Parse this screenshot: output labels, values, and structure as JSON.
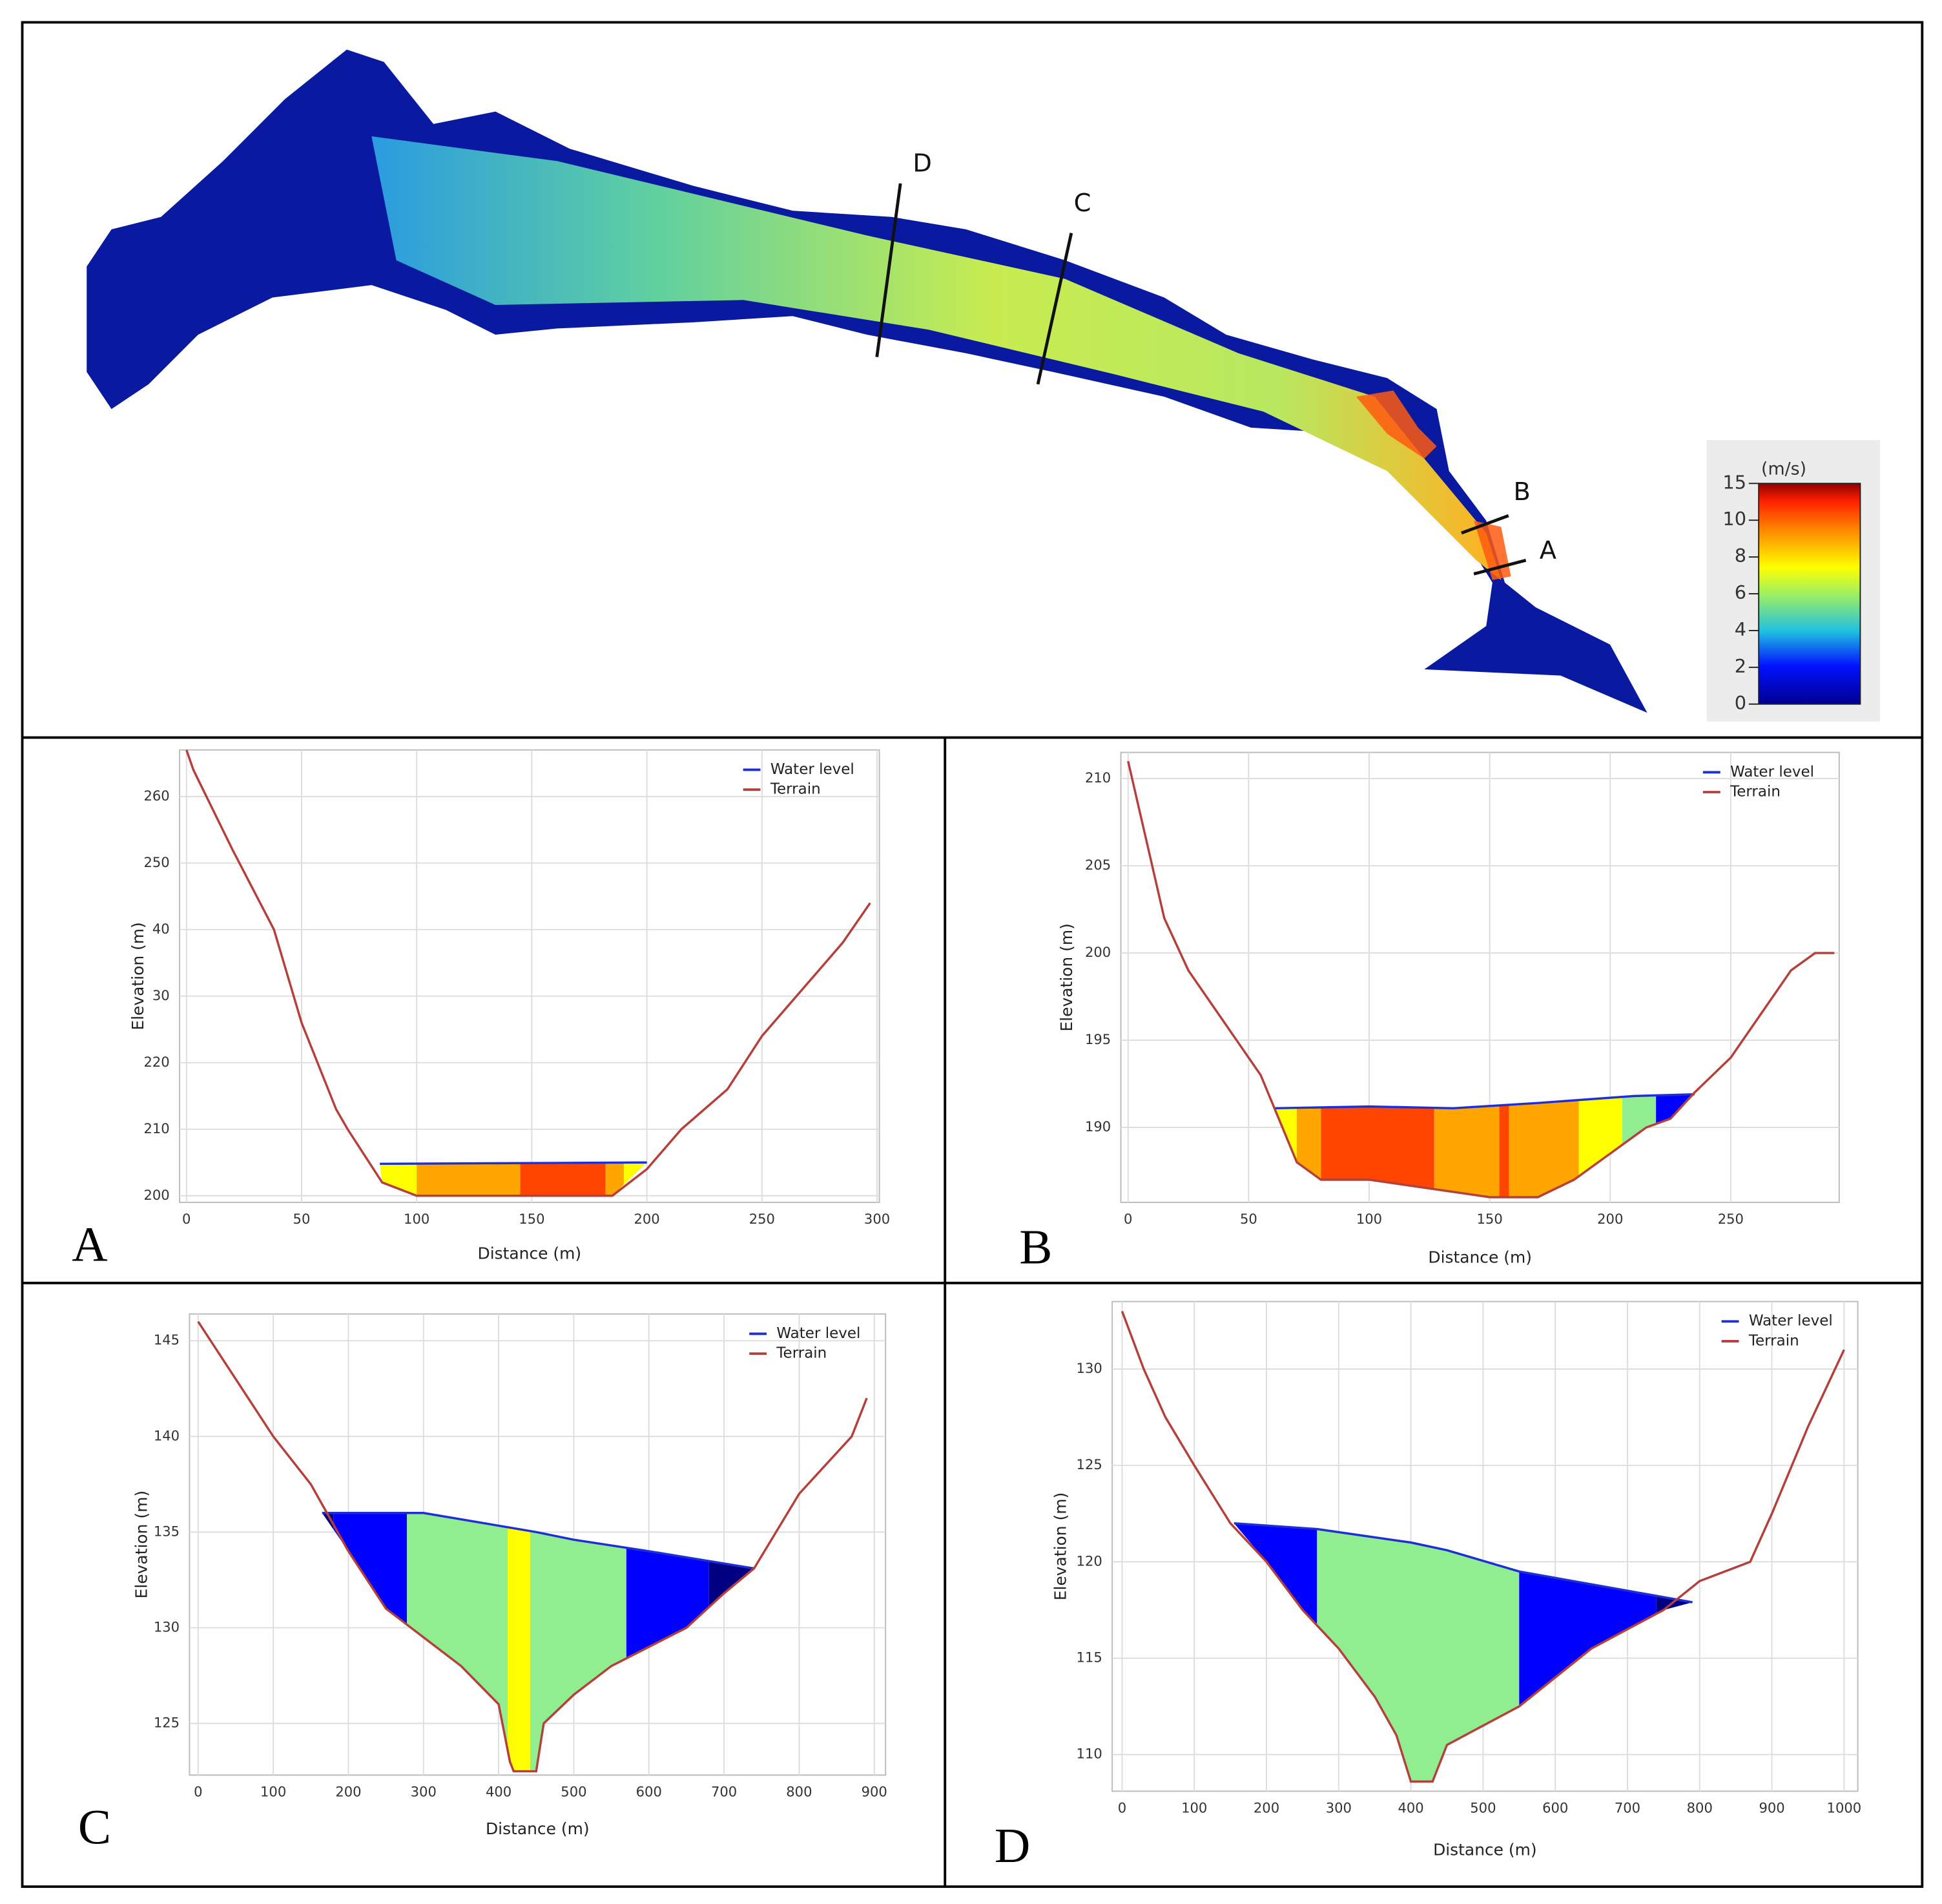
{
  "map": {
    "sections": [
      {
        "label": "D"
      },
      {
        "label": "C"
      },
      {
        "label": "B"
      },
      {
        "label": "A"
      }
    ],
    "legend": {
      "unit": "(m/s)",
      "ticks": [
        15,
        10,
        8,
        6,
        4,
        2,
        0
      ]
    }
  },
  "chart_data": [
    {
      "type": "cross-section",
      "panel": "A",
      "x_label": "Distance (m)",
      "y_label": "Elevation (m)",
      "legend": "top-right",
      "grid": true,
      "xlim": [
        -3,
        301
      ],
      "ylim": [
        199,
        267
      ],
      "xticks": [
        0,
        50,
        100,
        150,
        200,
        250,
        300
      ],
      "yticks": [
        200,
        210,
        220,
        {
          "value": 230,
          "label": "30"
        },
        {
          "value": 240,
          "label": "40"
        },
        250,
        260
      ],
      "series": [
        {
          "name": "Water level",
          "color": "#1f2fd6",
          "x": [
            84,
            200
          ],
          "values": [
            204.8,
            205
          ]
        },
        {
          "name": "Terrain",
          "color": "#b5403b",
          "x": [
            0,
            3,
            20,
            38,
            50,
            65,
            70,
            85,
            100,
            185,
            200,
            215,
            235,
            250,
            270,
            285,
            297
          ],
          "values": [
            267,
            264,
            252,
            240,
            226,
            213,
            210,
            202,
            200,
            200,
            204,
            210,
            216,
            224,
            232,
            238,
            244
          ]
        }
      ],
      "bands": [
        {
          "x": [
            84,
            100
          ],
          "color": "#ffff00"
        },
        {
          "x": [
            100,
            145
          ],
          "color": "#ffa500"
        },
        {
          "x": [
            145,
            182
          ],
          "color": "#ff4500"
        },
        {
          "x": [
            182,
            190
          ],
          "color": "#ffa500"
        },
        {
          "x": [
            190,
            200
          ],
          "color": "#ffff00"
        }
      ]
    },
    {
      "type": "cross-section",
      "panel": "B",
      "x_label": "Distance (m)",
      "y_label": "Elevation (m)",
      "legend": "top-right",
      "grid": true,
      "xlim": [
        -3,
        295
      ],
      "ylim": [
        185.7,
        211.5
      ],
      "xticks": [
        0,
        50,
        100,
        150,
        200,
        250
      ],
      "yticks": [
        190,
        195,
        200,
        205,
        210
      ],
      "series": [
        {
          "name": "Water level",
          "color": "#1f2fd6",
          "x": [
            61,
            100,
            135,
            170,
            210,
            235
          ],
          "values": [
            191.1,
            191.2,
            191.1,
            191.4,
            191.8,
            191.9
          ]
        },
        {
          "name": "Terrain",
          "color": "#b5403b",
          "x": [
            0,
            5,
            15,
            25,
            40,
            55,
            70,
            80,
            100,
            150,
            170,
            185,
            200,
            215,
            225,
            235,
            250,
            265,
            275,
            285,
            293
          ],
          "values": [
            211,
            208,
            202,
            199,
            196,
            193,
            188,
            187,
            187,
            186,
            186,
            187,
            188.5,
            190,
            190.5,
            192,
            194,
            197,
            199,
            200,
            200
          ]
        }
      ],
      "bands": [
        {
          "x": [
            61,
            70
          ],
          "color": "#ffff00"
        },
        {
          "x": [
            70,
            80
          ],
          "color": "#ffa500"
        },
        {
          "x": [
            80,
            127
          ],
          "color": "#ff4500"
        },
        {
          "x": [
            127,
            154
          ],
          "color": "#ffa500"
        },
        {
          "x": [
            154,
            158
          ],
          "color": "#ff4500"
        },
        {
          "x": [
            158,
            187
          ],
          "color": "#ffa500"
        },
        {
          "x": [
            187,
            205
          ],
          "color": "#ffff00"
        },
        {
          "x": [
            205,
            219
          ],
          "color": "#90ee90"
        },
        {
          "x": [
            219,
            234
          ],
          "color": "#0000ff"
        },
        {
          "x": [
            234,
            236
          ],
          "color": "#000080"
        }
      ]
    },
    {
      "type": "cross-section",
      "panel": "C",
      "x_label": "Distance (m)",
      "y_label": "Elevation (m)",
      "legend": "top-right",
      "grid": true,
      "xlim": [
        -11.5,
        915
      ],
      "ylim": [
        122.3,
        146.4
      ],
      "xticks": [
        0,
        100,
        200,
        300,
        400,
        500,
        600,
        700,
        800,
        900
      ],
      "yticks": [
        125,
        130,
        135,
        140,
        145
      ],
      "series": [
        {
          "name": "Water level",
          "color": "#1f2fd6",
          "x": [
            165,
            280,
            300,
            450,
            500,
            600,
            740
          ],
          "values": [
            136,
            136,
            136,
            135,
            134.6,
            134,
            133.1
          ]
        },
        {
          "name": "Terrain",
          "color": "#b5403b",
          "x": [
            0,
            50,
            100,
            150,
            200,
            250,
            300,
            350,
            400,
            415,
            420,
            450,
            460,
            500,
            550,
            600,
            650,
            700,
            740,
            800,
            870,
            890
          ],
          "values": [
            146,
            143,
            140,
            137.5,
            134,
            131,
            129.5,
            128,
            126,
            123,
            122.5,
            122.5,
            125,
            126.5,
            128,
            129,
            130,
            131.8,
            133.1,
            137,
            140,
            142
          ]
        }
      ],
      "bands": [
        {
          "x": [
            165,
            180
          ],
          "color": "#000080"
        },
        {
          "x": [
            180,
            278
          ],
          "color": "#0000ff"
        },
        {
          "x": [
            278,
            412
          ],
          "color": "#90ee90"
        },
        {
          "x": [
            412,
            442
          ],
          "color": "#ffff00"
        },
        {
          "x": [
            442,
            570
          ],
          "color": "#90ee90"
        },
        {
          "x": [
            570,
            680
          ],
          "color": "#0000ff"
        },
        {
          "x": [
            680,
            740
          ],
          "color": "#000080"
        }
      ]
    },
    {
      "type": "cross-section",
      "panel": "D",
      "x_label": "Distance (m)",
      "y_label": "Elevation (m)",
      "legend": "top-right",
      "grid": true,
      "xlim": [
        -13.7,
        1019
      ],
      "ylim": [
        108.1,
        133.5
      ],
      "xticks": [
        0,
        100,
        200,
        300,
        400,
        500,
        600,
        700,
        800,
        900,
        1000
      ],
      "yticks": [
        110,
        115,
        120,
        125,
        130
      ],
      "series": [
        {
          "name": "Water level",
          "color": "#1f2fd6",
          "x": [
            155,
            270,
            400,
            450,
            550,
            700,
            790
          ],
          "values": [
            122,
            121.7,
            121,
            120.6,
            119.5,
            118.5,
            117.9
          ]
        },
        {
          "name": "Terrain",
          "color": "#b5403b",
          "x": [
            0,
            30,
            60,
            100,
            150,
            200,
            250,
            300,
            350,
            380,
            400,
            430,
            450,
            500,
            550,
            600,
            650,
            700,
            750,
            800,
            870,
            900,
            950,
            1000
          ],
          "values": [
            133,
            130,
            127.5,
            125,
            122,
            120,
            117.5,
            115.5,
            113,
            111,
            108.6,
            108.6,
            110.5,
            111.5,
            112.5,
            114,
            115.5,
            116.5,
            117.5,
            119,
            120,
            122.5,
            127,
            131
          ]
        }
      ],
      "bands": [
        {
          "x": [
            155,
            270
          ],
          "color": "#0000ff"
        },
        {
          "x": [
            270,
            550
          ],
          "color": "#90ee90"
        },
        {
          "x": [
            550,
            740
          ],
          "color": "#0000ff"
        },
        {
          "x": [
            740,
            790
          ],
          "color": "#000080"
        }
      ]
    }
  ]
}
